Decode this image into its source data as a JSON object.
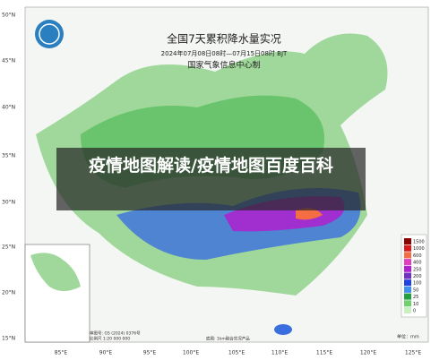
{
  "header": {
    "title": "全国7天累积降水量实况",
    "period": "2024年07月08日08时—07月15日08时 BJT",
    "producer": "国家气象信息中心制"
  },
  "overlay": {
    "caption": "疫情地图解读/疫情地图百度百科"
  },
  "latitude_labels": [
    "50°N",
    "45°N",
    "40°N",
    "35°N",
    "30°N",
    "25°N",
    "20°N",
    "15°N"
  ],
  "longitude_labels": [
    "85°E",
    "90°E",
    "95°E",
    "100°E",
    "105°E",
    "110°E",
    "115°E",
    "120°E",
    "125°E"
  ],
  "legend": {
    "unit": "单位：mm",
    "items": [
      {
        "label": "1500",
        "color": "#8b0000"
      },
      {
        "label": "1000",
        "color": "#d7191c"
      },
      {
        "label": "600",
        "color": "#f46d43"
      },
      {
        "label": "400",
        "color": "#e040c0"
      },
      {
        "label": "250",
        "color": "#b020d0"
      },
      {
        "label": "200",
        "color": "#7030c0"
      },
      {
        "label": "100",
        "color": "#2040e0"
      },
      {
        "label": "50",
        "color": "#4090f0"
      },
      {
        "label": "25",
        "color": "#20a040"
      },
      {
        "label": "10",
        "color": "#70d070"
      },
      {
        "label": "0",
        "color": "#c8f0c0"
      }
    ]
  },
  "footer": {
    "approval": "审图号: GS (2024) 0376号",
    "basemap": "底图: 1km融合实况产品",
    "scale": "比例尺 1:20 000 000"
  }
}
